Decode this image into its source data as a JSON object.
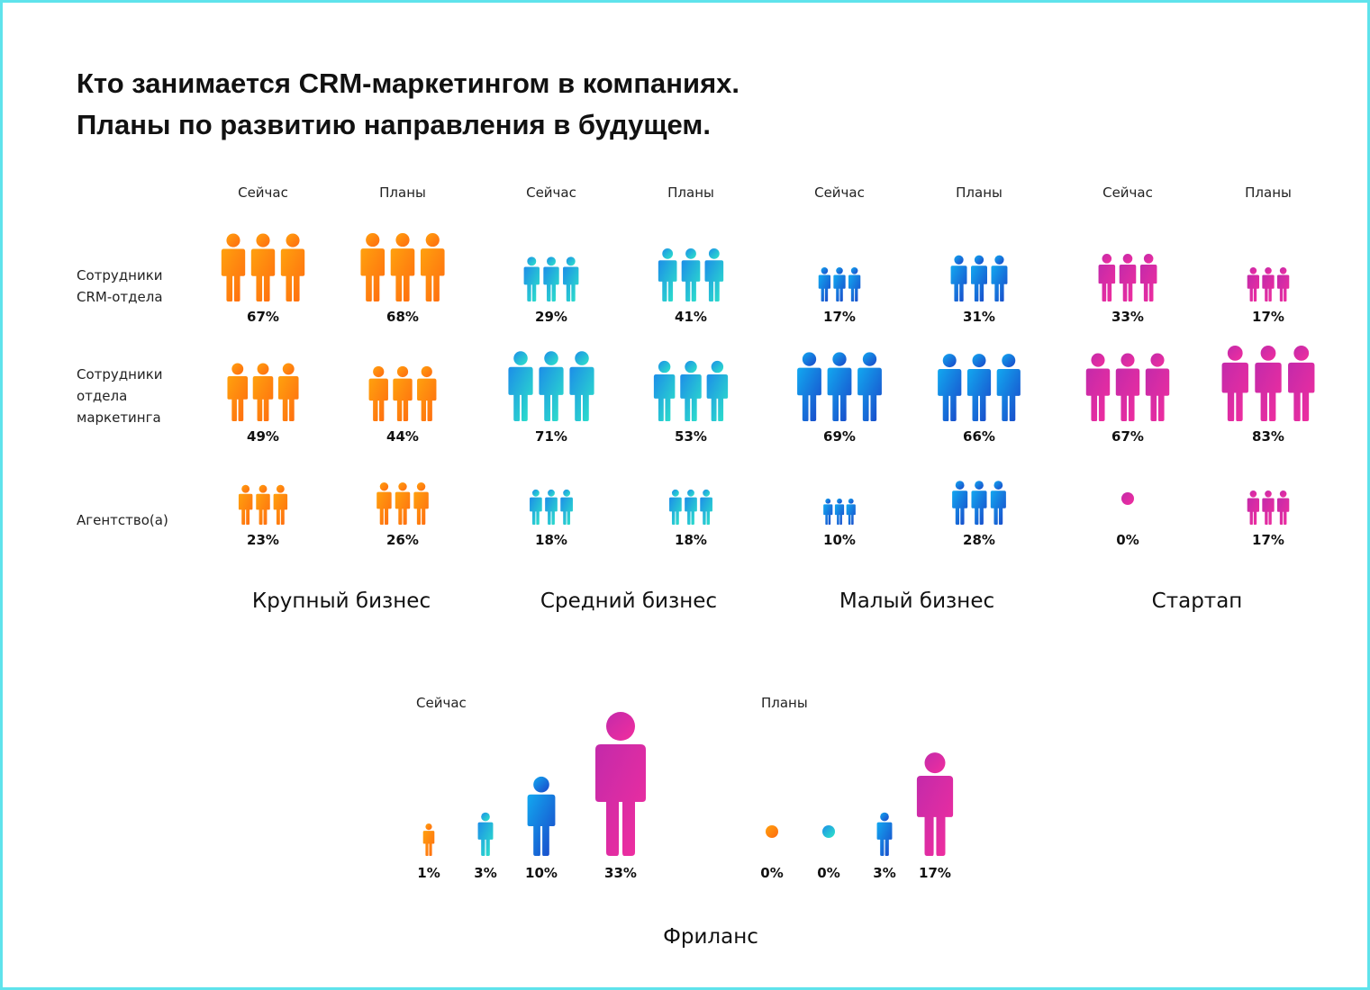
{
  "title_line1": "Кто занимается CRM-маркетингом в компаниях.",
  "title_line2": "Планы по развитию направления в будущем.",
  "chart_data": [
    {
      "type": "pictogram",
      "column_labels": [
        "Сейчас",
        "Планы"
      ],
      "rows": [
        "Сотрудники CRM-отдела",
        "Сотрудники отдела маркетинга",
        "Агентство(а)"
      ],
      "row_label_lines": [
        [
          "Сотрудники",
          "CRM-отдела"
        ],
        [
          "Сотрудники",
          "отдела",
          "маркетинга"
        ],
        [
          "Агентство(а)"
        ]
      ],
      "groups": [
        {
          "name": "Крупный бизнес",
          "colors": [
            "#ffa10e",
            "#ff6a10"
          ],
          "now": [
            67,
            49,
            23
          ],
          "plans": [
            68,
            44,
            26
          ]
        },
        {
          "name": "Средний бизнес",
          "colors": [
            "#1c8ee8",
            "#2ee6c8"
          ],
          "now": [
            29,
            71,
            18
          ],
          "plans": [
            41,
            53,
            18
          ]
        },
        {
          "name": "Малый бизнес",
          "colors": [
            "#12a8f0",
            "#1a45c8"
          ],
          "now": [
            17,
            69,
            10
          ],
          "plans": [
            31,
            66,
            28
          ]
        },
        {
          "name": "Стартап",
          "colors": [
            "#c32aaa",
            "#f22e9e"
          ],
          "now": [
            33,
            67,
            0
          ],
          "plans": [
            17,
            83,
            17
          ]
        }
      ]
    },
    {
      "type": "pictogram",
      "title": "Фриланс",
      "column_labels": [
        "Сейчас",
        "Планы"
      ],
      "categories": [
        "Крупный бизнес",
        "Средний бизнес",
        "Малый бизнес",
        "Стартап"
      ],
      "now": [
        1,
        3,
        10,
        33
      ],
      "plans": [
        0,
        0,
        3,
        17
      ]
    }
  ]
}
